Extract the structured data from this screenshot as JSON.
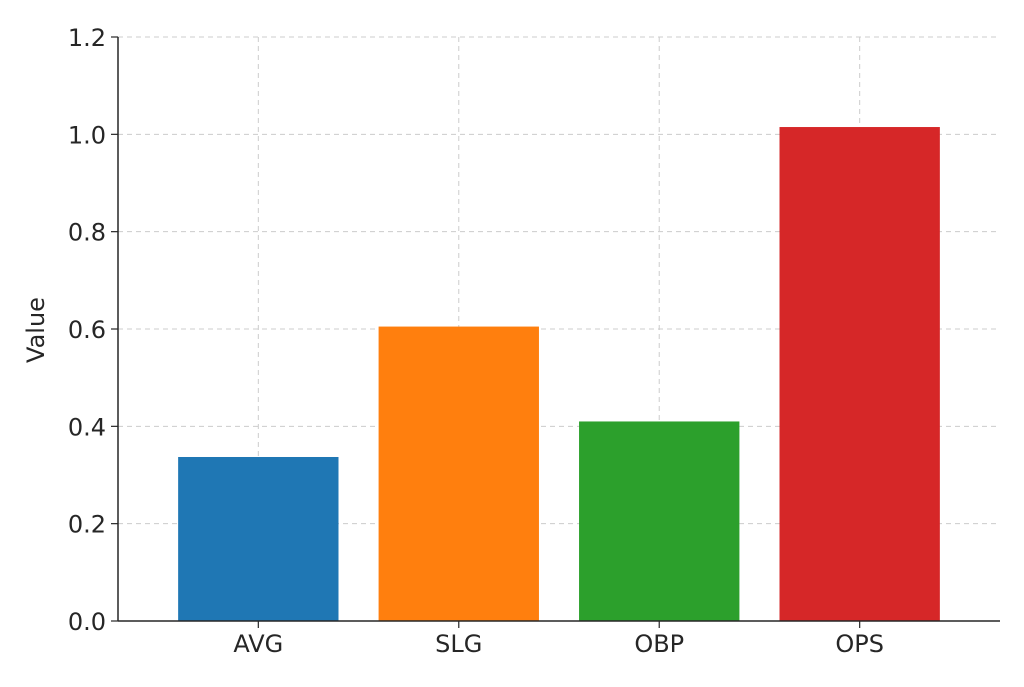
{
  "chart_data": {
    "type": "bar",
    "categories": [
      "AVG",
      "SLG",
      "OBP",
      "OPS"
    ],
    "values": [
      0.337,
      0.605,
      0.41,
      1.015
    ],
    "colors": [
      "#1f77b4",
      "#ff7f0e",
      "#2ca02c",
      "#d62728"
    ],
    "title": "",
    "xlabel": "",
    "ylabel": "Value",
    "ylim": [
      0,
      1.2
    ],
    "yticks": [
      0.0,
      0.2,
      0.4,
      0.6,
      0.8,
      1.0,
      1.2
    ],
    "ytick_labels": [
      "0.0",
      "0.2",
      "0.4",
      "0.6",
      "0.8",
      "1.0",
      "1.2"
    ],
    "grid": true,
    "legend": "none"
  }
}
